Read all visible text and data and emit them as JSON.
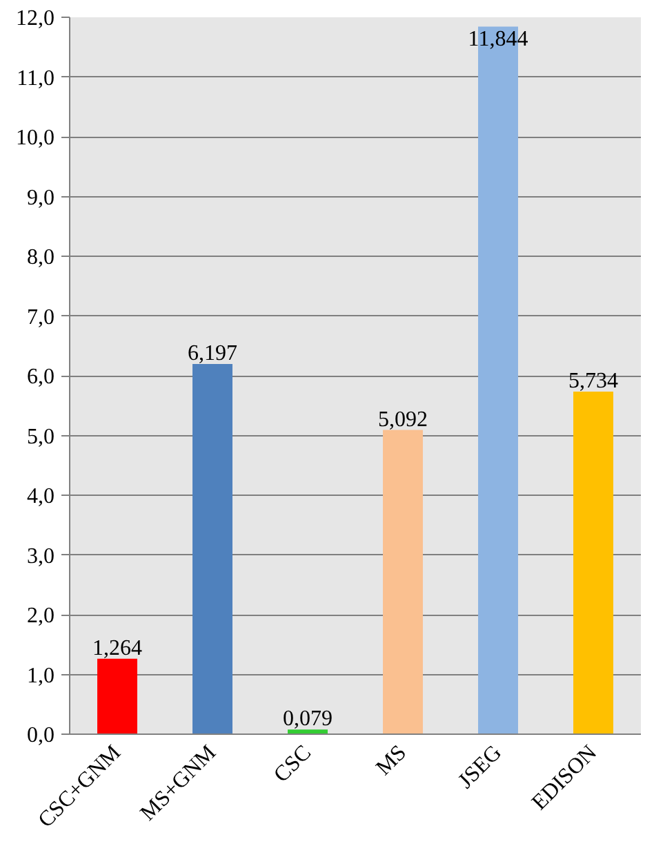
{
  "chart_data": {
    "type": "bar",
    "categories": [
      "CSC+GNM",
      "MS+GNM",
      "CSC",
      "MS",
      "JSEG",
      "EDISON"
    ],
    "values": [
      1.264,
      6.197,
      0.079,
      5.092,
      11.844,
      5.734
    ],
    "colors": [
      "#ff0000",
      "#4f81bd",
      "#33cc33",
      "#fac090",
      "#8db4e2",
      "#ffc000"
    ],
    "value_labels": [
      "1,264",
      "6,197",
      "0,079",
      "5,092",
      "11,844",
      "5,734"
    ],
    "ylim": [
      0,
      12
    ],
    "yticks": [
      {
        "value": 0,
        "label": "0,0"
      },
      {
        "value": 1,
        "label": "1,0"
      },
      {
        "value": 2,
        "label": "2,0"
      },
      {
        "value": 3,
        "label": "3,0"
      },
      {
        "value": 4,
        "label": "4,0"
      },
      {
        "value": 5,
        "label": "5,0"
      },
      {
        "value": 6,
        "label": "6,0"
      },
      {
        "value": 7,
        "label": "7,0"
      },
      {
        "value": 8,
        "label": "8,0"
      },
      {
        "value": 9,
        "label": "9,0"
      },
      {
        "value": 10,
        "label": "10,0"
      },
      {
        "value": 11,
        "label": "11,0"
      },
      {
        "value": 12,
        "label": "12,0"
      }
    ],
    "grid": "y"
  }
}
